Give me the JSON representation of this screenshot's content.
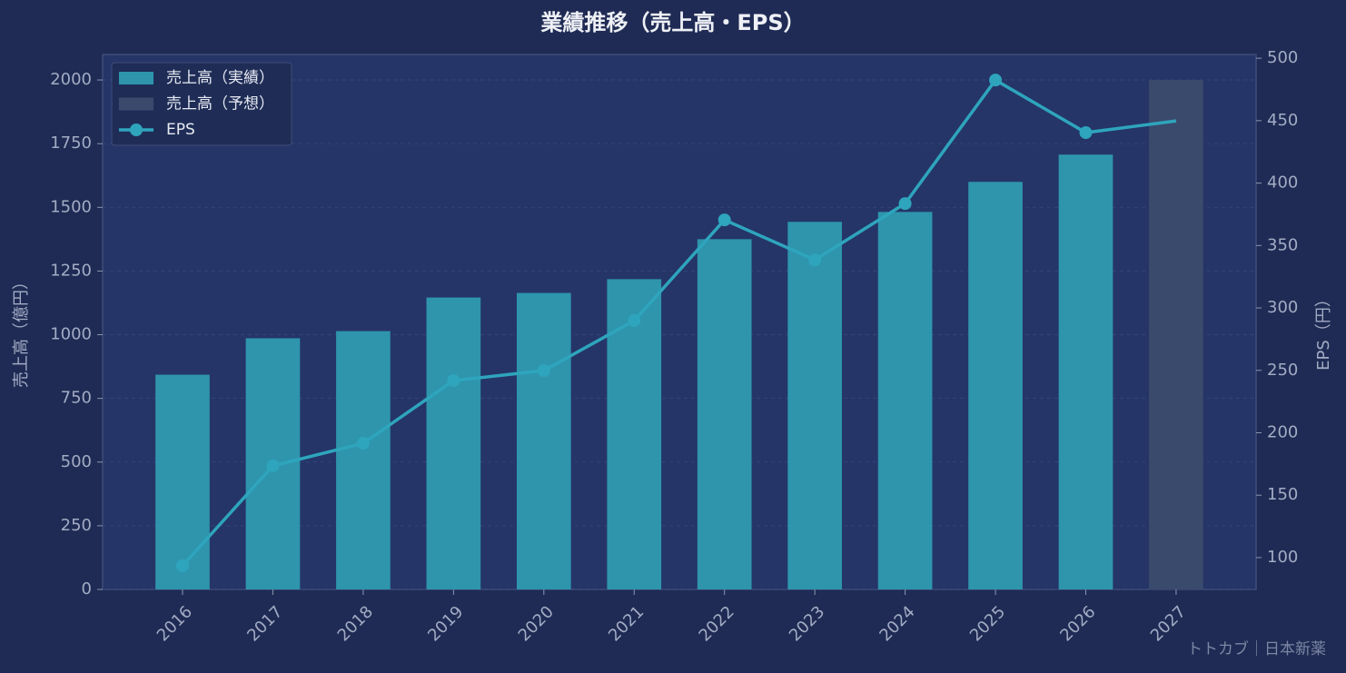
{
  "chart_data": {
    "type": "bar",
    "title": "業績推移（売上高・EPS）",
    "y_label": "売上高（億円）",
    "y2_label": "EPS（円）",
    "categories": [
      "2016",
      "2017",
      "2018",
      "2019",
      "2020",
      "2021",
      "2022",
      "2023",
      "2024",
      "2025",
      "2026",
      "2027"
    ],
    "series": [
      {
        "name": "売上高（実績）",
        "color": "#2e95ad",
        "values": [
          843,
          986,
          1014,
          1146,
          1164,
          1218,
          1375,
          1443,
          1482,
          1600,
          1707,
          null
        ]
      },
      {
        "name": "売上高（予想）",
        "color": "#3a4a6c",
        "values": [
          null,
          null,
          null,
          null,
          null,
          null,
          null,
          null,
          null,
          null,
          null,
          2000
        ]
      },
      {
        "name": "EPS",
        "type": "line",
        "axis": "y2",
        "color": "#2ea5bd",
        "values": [
          93.5,
          173.5,
          191.6,
          241.8,
          249.8,
          289.8,
          370.5,
          338.5,
          383.6,
          482.5,
          440.4,
          449.8
        ]
      }
    ],
    "ylim": [
      0,
      2100
    ],
    "yticks": [
      0,
      250,
      500,
      750,
      1000,
      1250,
      1500,
      1750,
      2000
    ],
    "y2lim": [
      74.5,
      503
    ],
    "y2ticks": [
      100,
      150,
      200,
      250,
      300,
      350,
      400,
      450,
      500
    ],
    "grid": true,
    "legend": "upper left",
    "source": "トトカブ｜日本新薬"
  }
}
